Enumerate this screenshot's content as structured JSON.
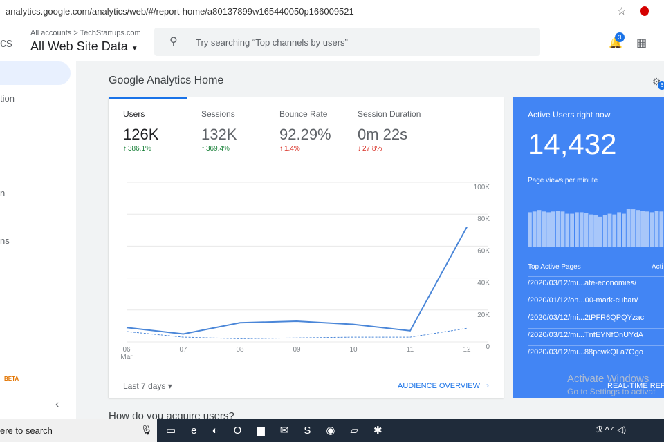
{
  "browser": {
    "url": "analytics.google.com/analytics/web/#/report-home/a80137899w165440050p166009521"
  },
  "header": {
    "logo_fragment": "cs",
    "account_path": "All accounts > TechStartups.com",
    "property": "All Web Site Data",
    "search_placeholder": "Try searching “Top channels by users”",
    "notification_count": 3,
    "insights_count": 6
  },
  "sidebar": {
    "items": [
      "tion",
      "n",
      "ns"
    ],
    "badge": "BETA"
  },
  "page_title": "Google Analytics Home",
  "metrics": [
    {
      "label": "Users",
      "value": "126K",
      "change": "386.1%",
      "direction": "up"
    },
    {
      "label": "Sessions",
      "value": "132K",
      "change": "369.4%",
      "direction": "up"
    },
    {
      "label": "Bounce Rate",
      "value": "92.29%",
      "change": "1.4%",
      "direction": "up-bad"
    },
    {
      "label": "Session Duration",
      "value": "0m 22s",
      "change": "27.8%",
      "direction": "down"
    }
  ],
  "chart_data": [
    {
      "type": "line",
      "categories": [
        "06",
        "07",
        "08",
        "09",
        "10",
        "11",
        "12"
      ],
      "first_category_month": "Mar",
      "series": [
        {
          "color": "#4a86d8",
          "values": [
            9000,
            5000,
            12000,
            13000,
            11000,
            7000,
            72000
          ]
        },
        {
          "color": "#4a86d8",
          "dashed": true,
          "values": [
            6500,
            3000,
            2000,
            2500,
            3000,
            3000,
            8500
          ]
        }
      ],
      "ylim": [
        0,
        100000
      ],
      "yticks": [
        0,
        {
          "value": 20000,
          "label": "20K"
        },
        {
          "value": 40000,
          "label": "40K"
        },
        {
          "value": 60000,
          "label": "60K"
        },
        {
          "value": 80000,
          "label": "80K"
        },
        {
          "value": 100000,
          "label": "100K"
        }
      ],
      "grid": true
    },
    {
      "type": "bar",
      "title": "Page views per minute",
      "color": "#a8c7fa",
      "values": [
        46,
        47,
        49,
        47,
        46,
        47,
        48,
        47,
        44,
        44,
        46,
        46,
        45,
        43,
        42,
        40,
        42,
        44,
        43,
        46,
        44,
        51,
        50,
        49,
        48,
        47,
        46,
        48,
        47,
        45
      ]
    }
  ],
  "footer": {
    "date_range": "Last 7 days",
    "link": "AUDIENCE OVERVIEW"
  },
  "realtime": {
    "title": "Active Users right now",
    "count": "14,432",
    "table_header": "Top Active Pages",
    "table_header_right": "Acti",
    "pages": [
      "/2020/03/12/mi...ate-economies/",
      "/2020/01/12/on...00-mark-cuban/",
      "/2020/03/12/mi...2tPFR6QPQYzac",
      "/2020/03/12/mi...TnfEYNfOnUYdA",
      "/2020/03/12/mi...88pcwkQLa7Ogo"
    ],
    "link": "REAL-TIME REP"
  },
  "next_section": "How do you acquire users?",
  "watermark": {
    "title": "Activate Windows",
    "subtitle": "Go to Settings to activat"
  },
  "taskbar": {
    "search": "ere to search"
  }
}
